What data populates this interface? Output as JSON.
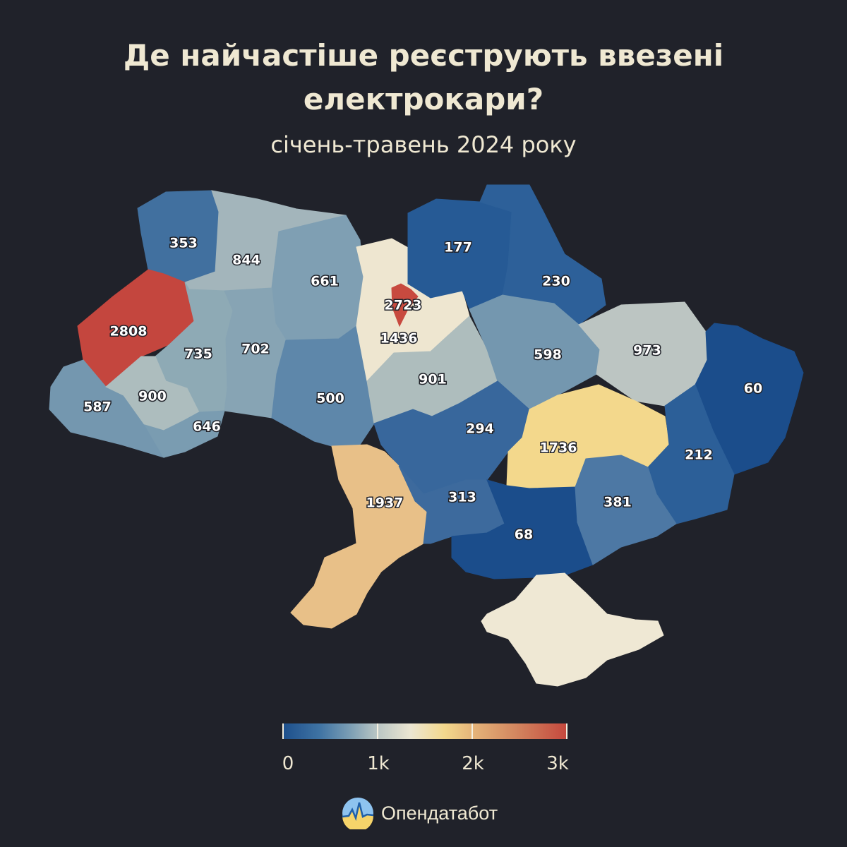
{
  "title_line1": "Де найчастіше реєструють ввезені",
  "title_line2": "електрокари?",
  "subtitle": "січень-травень 2024 року",
  "brand": "Опендатабот",
  "chart_data": {
    "type": "choropleth",
    "title": "Де найчастіше реєструють ввезені електрокари?",
    "subtitle": "січень-травень 2024 року",
    "scale": {
      "min": 0,
      "max": 3000,
      "ticks": [
        "0",
        "1k",
        "2k",
        "3k"
      ]
    },
    "regions": [
      {
        "label": "353",
        "value": 353,
        "color": "#41709f"
      },
      {
        "label": "844",
        "value": 844,
        "color": "#a3b5bb"
      },
      {
        "label": "661",
        "value": 661,
        "color": "#7f9fb3"
      },
      {
        "label": "2808",
        "value": 2808,
        "color": "#c4463e"
      },
      {
        "label": "735",
        "value": 735,
        "color": "#8eaab5"
      },
      {
        "label": "702",
        "value": 702,
        "color": "#87a4b4"
      },
      {
        "label": "587",
        "value": 587,
        "color": "#7497af"
      },
      {
        "label": "900",
        "value": 900,
        "color": "#adbdbe"
      },
      {
        "label": "646",
        "value": 646,
        "color": "#7a9cb1"
      },
      {
        "label": "500",
        "value": 500,
        "color": "#5e87aa"
      },
      {
        "label": "1436",
        "value": 1436,
        "color": "#eee6d0"
      },
      {
        "label": "2723",
        "value": 2723,
        "color": "#c84a3f"
      },
      {
        "label": "901",
        "value": 901,
        "color": "#aebdbd"
      },
      {
        "label": "177",
        "value": 177,
        "color": "#265a95"
      },
      {
        "label": "230",
        "value": 230,
        "color": "#2d6099"
      },
      {
        "label": "598",
        "value": 598,
        "color": "#7497af"
      },
      {
        "label": "973",
        "value": 973,
        "color": "#bcc5c2"
      },
      {
        "label": "60",
        "value": 60,
        "color": "#1b4d8b"
      },
      {
        "label": "294",
        "value": 294,
        "color": "#38679c"
      },
      {
        "label": "1736",
        "value": 1736,
        "color": "#f3d88c"
      },
      {
        "label": "212",
        "value": 212,
        "color": "#2c5f98"
      },
      {
        "label": "1937",
        "value": 1937,
        "color": "#e8c088"
      },
      {
        "label": "313",
        "value": 313,
        "color": "#3d6a9d"
      },
      {
        "label": "68",
        "value": 68,
        "color": "#1b4d8b"
      },
      {
        "label": "381",
        "value": 381,
        "color": "#4d78a4"
      },
      {
        "label": "",
        "value": null,
        "color": "#efe8d4"
      }
    ]
  }
}
